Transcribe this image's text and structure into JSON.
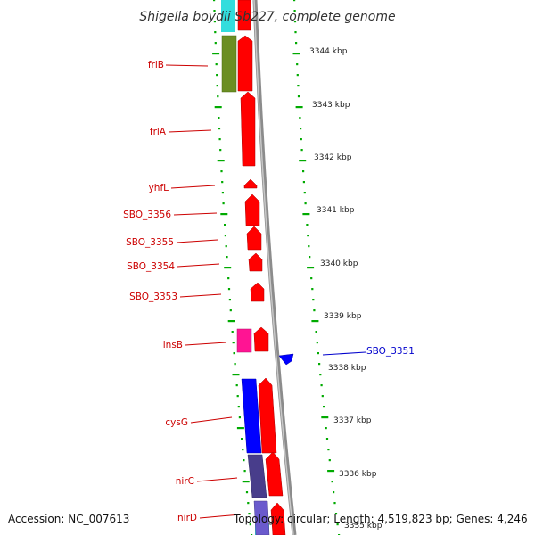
{
  "title": "Shigella boydii Sb227, complete genome",
  "accession": "Accession: NC_007613",
  "topology": "Topology: circular; Length: 4,519,823 bp; Genes: 4,246",
  "colors": {
    "forward_gene": "#ff0000",
    "reverse_gene": "#0000ff",
    "label_red": "#cc0000",
    "label_blue": "#0000cc",
    "tick_green": "#00aa00",
    "backbone_gray": "#9a9a9a",
    "cyan_feature": "#33dddd",
    "olive_feature": "#6b8e23",
    "pink_feature": "#ff1493",
    "slate_feature": "#483d8b"
  },
  "genes": [
    {
      "name": "frlB",
      "strand": "reverse-track",
      "color": "olive"
    },
    {
      "name": "frlA",
      "strand": "forward",
      "color": "red"
    },
    {
      "name": "yhfL",
      "strand": "forward",
      "color": "red"
    },
    {
      "name": "SBO_3356",
      "strand": "forward",
      "color": "red"
    },
    {
      "name": "SBO_3355",
      "strand": "forward",
      "color": "red"
    },
    {
      "name": "SBO_3354",
      "strand": "forward",
      "color": "red"
    },
    {
      "name": "SBO_3353",
      "strand": "forward",
      "color": "red"
    },
    {
      "name": "insB",
      "strand": "forward",
      "color": "red"
    },
    {
      "name": "SBO_3351",
      "strand": "reverse",
      "color": "blue"
    },
    {
      "name": "cysG",
      "strand": "forward",
      "color": "red"
    },
    {
      "name": "nirC",
      "strand": "forward",
      "color": "red"
    },
    {
      "name": "nirD",
      "strand": "forward",
      "color": "red"
    }
  ],
  "kbp_markers": [
    "3344 kbp",
    "3343 kbp",
    "3342 kbp",
    "3341 kbp",
    "3340 kbp",
    "3339 kbp",
    "3338 kbp",
    "3337 kbp",
    "3336 kbp",
    "3335 kbp"
  ]
}
